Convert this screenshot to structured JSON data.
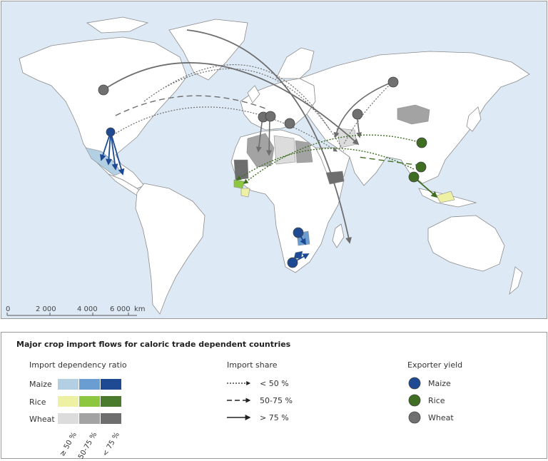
{
  "scalebar": {
    "ticks": [
      "0",
      "2 000",
      "4 000",
      "6 000"
    ],
    "unit": "km"
  },
  "legend": {
    "title": "Major crop import flows for caloric trade dependent countries",
    "dependency": {
      "heading": "Import dependency ratio",
      "rows": [
        {
          "label": "Maize",
          "colors": [
            "#b3cfe4",
            "#6a9ed3",
            "#1e4a94"
          ]
        },
        {
          "label": "Rice",
          "colors": [
            "#eef0a3",
            "#8dc63f",
            "#4a7b2c"
          ]
        },
        {
          "label": "Wheat",
          "colors": [
            "#dcdcdc",
            "#a3a3a3",
            "#6e6e6e"
          ]
        }
      ],
      "classes": [
        "≥ 50 %",
        "50-75 %",
        "< 75 %"
      ]
    },
    "share": {
      "heading": "Import share",
      "items": [
        {
          "label": "< 50 %",
          "style": "dotted"
        },
        {
          "label": "50-75 %",
          "style": "dashed"
        },
        {
          "label": "> 75 %",
          "style": "solid"
        }
      ]
    },
    "exporter": {
      "heading": "Exporter yield",
      "items": [
        {
          "label": "Maize",
          "color": "#1e4a94"
        },
        {
          "label": "Rice",
          "color": "#3f6e22"
        },
        {
          "label": "Wheat",
          "color": "#707070"
        }
      ]
    }
  },
  "colors": {
    "ocean": "#dde9f5",
    "land": "#ffffff",
    "border": "#8c8c8c",
    "maize_flow": "#1e4a94",
    "rice_flow": "#3f6e22",
    "wheat_flow": "#6e6e6e"
  }
}
